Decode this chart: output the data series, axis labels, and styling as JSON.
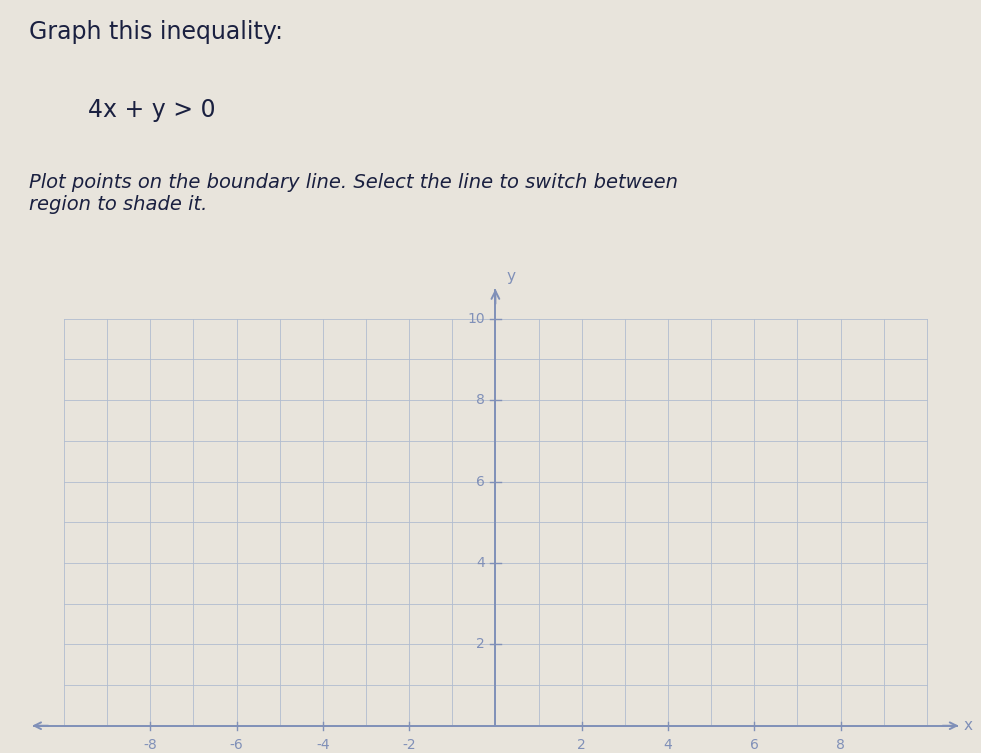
{
  "title_line1": "Graph this inequality:",
  "inequality": "4x + y > 0",
  "instruction": "Plot points on the boundary line. Select the line to switch between\nregion to shade it.",
  "background_color": "#e8e4dc",
  "grid_color": "#b0bcd0",
  "axis_color": "#8090b8",
  "text_color": "#2a3050",
  "title_color": "#1a2040",
  "xlim": [
    -10,
    10
  ],
  "ylim": [
    0,
    10
  ],
  "x_ticks": [
    -8,
    -6,
    -4,
    -2,
    2,
    4,
    6,
    8
  ],
  "y_ticks": [
    2,
    4,
    6,
    8,
    10
  ],
  "tick_label_color": "#8090b8",
  "figsize": [
    9.81,
    7.53
  ],
  "dpi": 100
}
